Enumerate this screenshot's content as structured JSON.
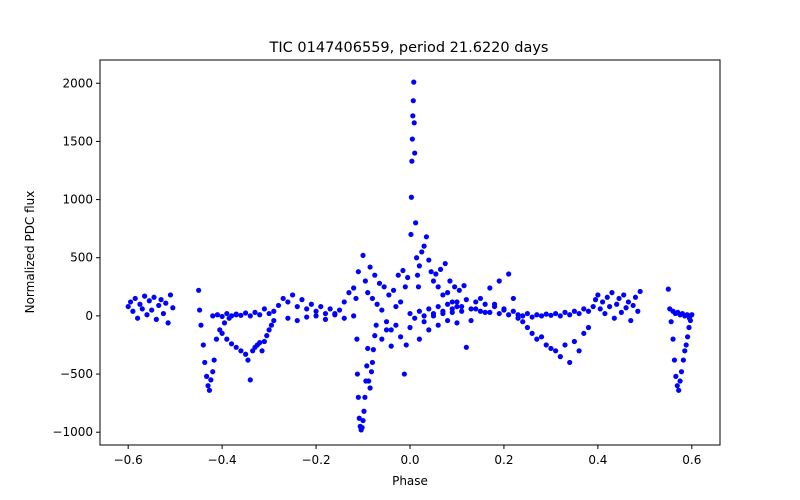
{
  "chart_data": {
    "type": "scatter",
    "title": "TIC 0147406559, period 21.6220 days",
    "xlabel": "Phase",
    "ylabel": "Normalized PDC flux",
    "xlim": [
      -0.66,
      0.66
    ],
    "ylim": [
      -1110,
      2200
    ],
    "xticks": [
      -0.6,
      -0.4,
      -0.2,
      0.0,
      0.2,
      0.4,
      0.6
    ],
    "xtick_labels": [
      "−0.6",
      "−0.4",
      "−0.2",
      "0.0",
      "0.2",
      "0.4",
      "0.6"
    ],
    "yticks": [
      -1000,
      -500,
      0,
      500,
      1000,
      1500,
      2000
    ],
    "ytick_labels": [
      "−1000",
      "−500",
      "0",
      "500",
      "1000",
      "1500",
      "2000"
    ],
    "grid": false,
    "marker_color": "#0000ff",
    "series": [
      {
        "points": [
          [
            -0.6,
            80
          ],
          [
            -0.595,
            120
          ],
          [
            -0.59,
            40
          ],
          [
            -0.585,
            150
          ],
          [
            -0.58,
            -20
          ],
          [
            -0.575,
            100
          ],
          [
            -0.57,
            60
          ],
          [
            -0.565,
            170
          ],
          [
            -0.56,
            10
          ],
          [
            -0.555,
            130
          ],
          [
            -0.55,
            50
          ],
          [
            -0.545,
            160
          ],
          [
            -0.54,
            -30
          ],
          [
            -0.535,
            90
          ],
          [
            -0.53,
            140
          ],
          [
            -0.525,
            20
          ],
          [
            -0.52,
            110
          ],
          [
            -0.515,
            -60
          ],
          [
            -0.51,
            180
          ],
          [
            -0.505,
            70
          ],
          [
            -0.45,
            220
          ],
          [
            -0.448,
            50
          ],
          [
            -0.445,
            -80
          ],
          [
            -0.44,
            -250
          ],
          [
            -0.437,
            -400
          ],
          [
            -0.433,
            -520
          ],
          [
            -0.43,
            -600
          ],
          [
            -0.427,
            -640
          ],
          [
            -0.424,
            -550
          ],
          [
            -0.42,
            -480
          ],
          [
            -0.417,
            -380
          ],
          [
            -0.412,
            -200
          ],
          [
            -0.405,
            -120
          ],
          [
            -0.395,
            -60
          ],
          [
            -0.385,
            -20
          ],
          [
            -0.37,
            10
          ],
          [
            -0.4,
            -150
          ],
          [
            -0.39,
            -200
          ],
          [
            -0.38,
            -240
          ],
          [
            -0.37,
            -270
          ],
          [
            -0.36,
            -300
          ],
          [
            -0.35,
            -330
          ],
          [
            -0.345,
            -380
          ],
          [
            -0.34,
            -550
          ],
          [
            -0.335,
            -300
          ],
          [
            -0.33,
            -270
          ],
          [
            -0.325,
            -250
          ],
          [
            -0.32,
            -230
          ],
          [
            -0.315,
            -300
          ],
          [
            -0.31,
            -220
          ],
          [
            -0.305,
            -170
          ],
          [
            -0.3,
            -120
          ],
          [
            -0.295,
            -80
          ],
          [
            -0.29,
            -40
          ],
          [
            -0.42,
            0
          ],
          [
            -0.41,
            10
          ],
          [
            -0.4,
            -5
          ],
          [
            -0.39,
            20
          ],
          [
            -0.38,
            0
          ],
          [
            -0.37,
            15
          ],
          [
            -0.36,
            5
          ],
          [
            -0.35,
            25
          ],
          [
            -0.34,
            0
          ],
          [
            -0.33,
            30
          ],
          [
            -0.32,
            10
          ],
          [
            -0.31,
            60
          ],
          [
            -0.3,
            20
          ],
          [
            -0.29,
            40
          ],
          [
            -0.28,
            90
          ],
          [
            -0.27,
            150
          ],
          [
            -0.26,
            120
          ],
          [
            -0.25,
            180
          ],
          [
            -0.24,
            80
          ],
          [
            -0.23,
            140
          ],
          [
            -0.22,
            60
          ],
          [
            -0.21,
            100
          ],
          [
            -0.2,
            40
          ],
          [
            -0.19,
            80
          ],
          [
            -0.18,
            20
          ],
          [
            -0.17,
            60
          ],
          [
            -0.16,
            10
          ],
          [
            -0.15,
            50
          ],
          [
            -0.14,
            120
          ],
          [
            -0.13,
            200
          ],
          [
            -0.12,
            240
          ],
          [
            -0.11,
            380
          ],
          [
            -0.26,
            -20
          ],
          [
            -0.24,
            -40
          ],
          [
            -0.22,
            -10
          ],
          [
            -0.2,
            0
          ],
          [
            -0.18,
            -30
          ],
          [
            -0.16,
            20
          ],
          [
            -0.14,
            -20
          ],
          [
            -0.12,
            0
          ],
          [
            -0.115,
            150
          ],
          [
            -0.113,
            -200
          ],
          [
            -0.112,
            -500
          ],
          [
            -0.11,
            -700
          ],
          [
            -0.108,
            -880
          ],
          [
            -0.106,
            -950
          ],
          [
            -0.104,
            -980
          ],
          [
            -0.102,
            -960
          ],
          [
            -0.1,
            -900
          ],
          [
            -0.098,
            -820
          ],
          [
            -0.096,
            -700
          ],
          [
            -0.094,
            -560
          ],
          [
            -0.092,
            -430
          ],
          [
            -0.09,
            -280
          ],
          [
            -0.088,
            -560
          ],
          [
            -0.085,
            -620
          ],
          [
            -0.082,
            -480
          ],
          [
            -0.08,
            -400
          ],
          [
            -0.078,
            -290
          ],
          [
            -0.075,
            -170
          ],
          [
            -0.072,
            -80
          ],
          [
            -0.1,
            520
          ],
          [
            -0.095,
            300
          ],
          [
            -0.09,
            200
          ],
          [
            -0.085,
            420
          ],
          [
            -0.08,
            150
          ],
          [
            -0.075,
            350
          ],
          [
            -0.07,
            100
          ],
          [
            -0.065,
            280
          ],
          [
            -0.06,
            50
          ],
          [
            -0.055,
            250
          ],
          [
            -0.05,
            -50
          ],
          [
            -0.045,
            180
          ],
          [
            -0.04,
            -120
          ],
          [
            -0.035,
            220
          ],
          [
            -0.03,
            80
          ],
          [
            -0.025,
            350
          ],
          [
            -0.02,
            120
          ],
          [
            -0.015,
            390
          ],
          [
            -0.01,
            250
          ],
          [
            -0.005,
            330
          ],
          [
            -0.06,
            -200
          ],
          [
            -0.05,
            -120
          ],
          [
            -0.04,
            -260
          ],
          [
            -0.03,
            -80
          ],
          [
            -0.02,
            -180
          ],
          [
            -0.012,
            -500
          ],
          [
            -0.008,
            -250
          ],
          [
            0.0,
            -100
          ],
          [
            0.002,
            700
          ],
          [
            0.003,
            1020
          ],
          [
            0.004,
            1330
          ],
          [
            0.005,
            1520
          ],
          [
            0.006,
            1720
          ],
          [
            0.007,
            1850
          ],
          [
            0.008,
            2010
          ],
          [
            0.009,
            1660
          ],
          [
            0.01,
            1400
          ],
          [
            0.012,
            800
          ],
          [
            0.014,
            500
          ],
          [
            0.016,
            350
          ],
          [
            0.018,
            250
          ],
          [
            0.02,
            430
          ],
          [
            0.025,
            550
          ],
          [
            0.03,
            600
          ],
          [
            0.035,
            680
          ],
          [
            0.04,
            480
          ],
          [
            0.045,
            380
          ],
          [
            0.05,
            300
          ],
          [
            0.055,
            360
          ],
          [
            0.06,
            250
          ],
          [
            0.065,
            400
          ],
          [
            0.07,
            180
          ],
          [
            0.075,
            450
          ],
          [
            0.08,
            200
          ],
          [
            0.085,
            300
          ],
          [
            0.09,
            120
          ],
          [
            0.095,
            250
          ],
          [
            0.1,
            80
          ],
          [
            0.105,
            220
          ],
          [
            0.11,
            40
          ],
          [
            0.115,
            260
          ],
          [
            0.02,
            -200
          ],
          [
            0.03,
            -50
          ],
          [
            0.04,
            -120
          ],
          [
            0.05,
            0
          ],
          [
            0.06,
            -80
          ],
          [
            0.07,
            20
          ],
          [
            0.08,
            -40
          ],
          [
            0.09,
            30
          ],
          [
            0.1,
            -60
          ],
          [
            0.12,
            -270
          ],
          [
            0.13,
            -40
          ],
          [
            0.14,
            60
          ],
          [
            0.15,
            150
          ],
          [
            0.16,
            30
          ],
          [
            0.17,
            240
          ],
          [
            0.18,
            100
          ],
          [
            0.19,
            300
          ],
          [
            0.2,
            50
          ],
          [
            0.21,
            360
          ],
          [
            0.22,
            150
          ],
          [
            0.0,
            20
          ],
          [
            0.01,
            -20
          ],
          [
            0.02,
            40
          ],
          [
            0.03,
            0
          ],
          [
            0.04,
            60
          ],
          [
            0.05,
            20
          ],
          [
            0.06,
            80
          ],
          [
            0.07,
            40
          ],
          [
            0.08,
            100
          ],
          [
            0.09,
            60
          ],
          [
            0.1,
            120
          ],
          [
            0.11,
            80
          ],
          [
            0.12,
            140
          ],
          [
            0.13,
            60
          ],
          [
            0.14,
            120
          ],
          [
            0.15,
            40
          ],
          [
            0.16,
            100
          ],
          [
            0.17,
            30
          ],
          [
            0.18,
            80
          ],
          [
            0.19,
            20
          ],
          [
            0.2,
            60
          ],
          [
            0.21,
            10
          ],
          [
            0.22,
            40
          ],
          [
            0.23,
            -20
          ],
          [
            0.24,
            -50
          ],
          [
            0.25,
            -100
          ],
          [
            0.26,
            -150
          ],
          [
            0.27,
            -200
          ],
          [
            0.28,
            -180
          ],
          [
            0.29,
            -250
          ],
          [
            0.3,
            -280
          ],
          [
            0.31,
            -300
          ],
          [
            0.32,
            -350
          ],
          [
            0.33,
            -250
          ],
          [
            0.34,
            -400
          ],
          [
            0.35,
            -220
          ],
          [
            0.36,
            -300
          ],
          [
            0.37,
            -150
          ],
          [
            0.38,
            -100
          ],
          [
            0.23,
            10
          ],
          [
            0.24,
            0
          ],
          [
            0.25,
            20
          ],
          [
            0.26,
            -10
          ],
          [
            0.27,
            10
          ],
          [
            0.28,
            0
          ],
          [
            0.29,
            15
          ],
          [
            0.3,
            5
          ],
          [
            0.31,
            20
          ],
          [
            0.32,
            0
          ],
          [
            0.33,
            30
          ],
          [
            0.34,
            10
          ],
          [
            0.35,
            40
          ],
          [
            0.36,
            20
          ],
          [
            0.37,
            60
          ],
          [
            0.38,
            40
          ],
          [
            0.39,
            80
          ],
          [
            0.395,
            140
          ],
          [
            0.4,
            180
          ],
          [
            0.405,
            60
          ],
          [
            0.41,
            120
          ],
          [
            0.415,
            20
          ],
          [
            0.42,
            160
          ],
          [
            0.425,
            80
          ],
          [
            0.43,
            200
          ],
          [
            0.435,
            -20
          ],
          [
            0.44,
            100
          ],
          [
            0.445,
            150
          ],
          [
            0.45,
            30
          ],
          [
            0.455,
            180
          ],
          [
            0.46,
            70
          ],
          [
            0.465,
            120
          ],
          [
            0.47,
            -40
          ],
          [
            0.475,
            90
          ],
          [
            0.48,
            160
          ],
          [
            0.485,
            40
          ],
          [
            0.49,
            210
          ],
          [
            0.55,
            230
          ],
          [
            0.553,
            60
          ],
          [
            0.556,
            -50
          ],
          [
            0.56,
            -200
          ],
          [
            0.563,
            -380
          ],
          [
            0.566,
            -520
          ],
          [
            0.569,
            -600
          ],
          [
            0.572,
            -640
          ],
          [
            0.575,
            -560
          ],
          [
            0.578,
            -480
          ],
          [
            0.582,
            -380
          ],
          [
            0.585,
            -300
          ],
          [
            0.588,
            -250
          ],
          [
            0.591,
            -180
          ],
          [
            0.594,
            -100
          ],
          [
            0.597,
            -40
          ],
          [
            0.6,
            10
          ],
          [
            0.56,
            40
          ],
          [
            0.565,
            20
          ],
          [
            0.57,
            30
          ],
          [
            0.575,
            10
          ],
          [
            0.58,
            20
          ],
          [
            0.585,
            0
          ],
          [
            0.59,
            10
          ],
          [
            0.595,
            -20
          ]
        ]
      }
    ]
  }
}
